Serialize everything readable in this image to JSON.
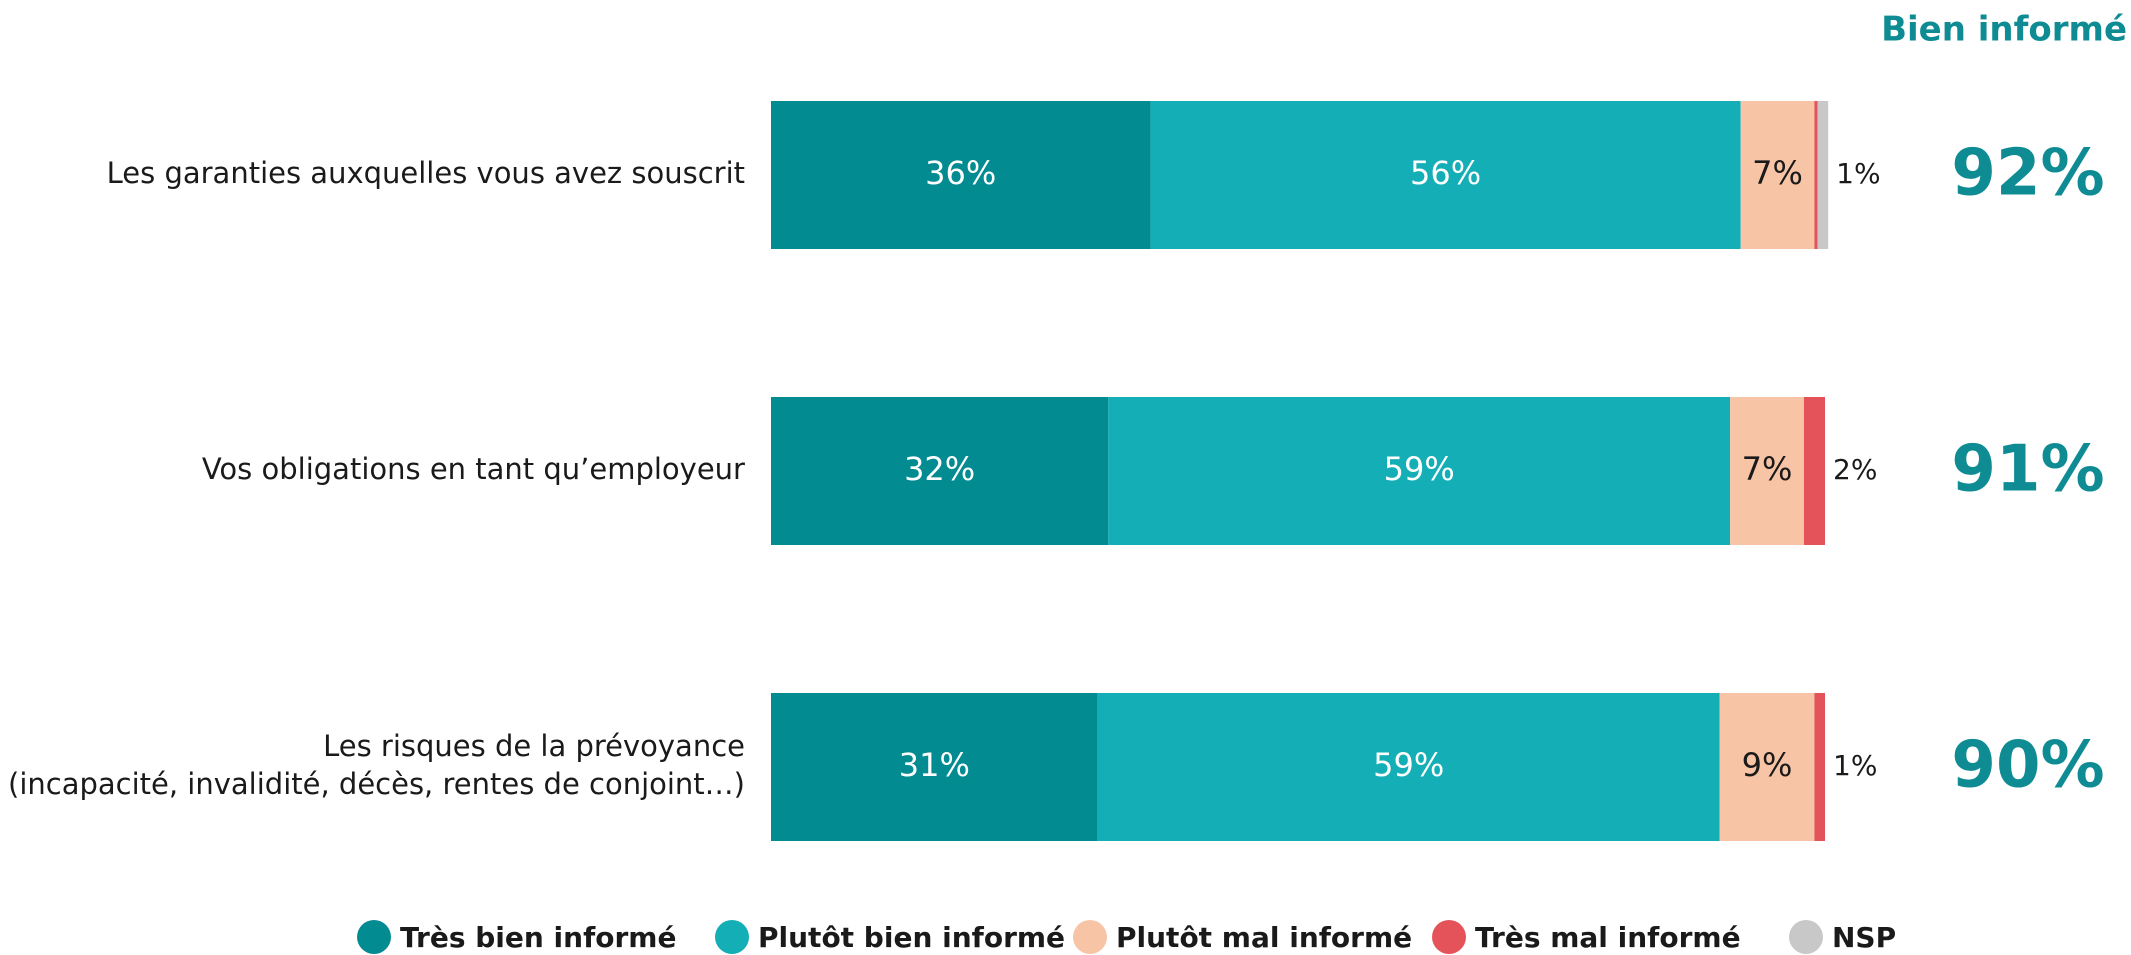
{
  "chart_data": {
    "type": "stacked-barh",
    "categories": [
      [
        "Les garanties auxquelles vous avez souscrit"
      ],
      [
        "Vos obligations en tant qu’employeur"
      ],
      [
        "Les risques de la prévoyance",
        "(incapacité, invalidité, décès, rentes de conjoint…)"
      ]
    ],
    "xlim": [
      0,
      100
    ],
    "series": [
      {
        "name": "Très bien informé",
        "color": "#038b92",
        "label_color": "#ffffff",
        "values": [
          36,
          32,
          31
        ],
        "value_labels": [
          "36%",
          "32%",
          "31%"
        ]
      },
      {
        "name": "Plutôt bien informé",
        "color": "#14aeb6",
        "label_color": "#ffffff",
        "values": [
          56,
          59,
          59
        ],
        "value_labels": [
          "56%",
          "59%",
          "59%"
        ]
      },
      {
        "name": "Plutôt mal informé",
        "color": "#f7c4a5",
        "label_color": "#1a1a1a",
        "values": [
          7,
          7,
          9
        ],
        "value_labels": [
          "7%",
          "7%",
          "9%"
        ]
      },
      {
        "name": "Très mal informé",
        "color": "#e5535a",
        "label_color": "#1a1a1a",
        "values": [
          0.3,
          2,
          1
        ],
        "value_labels": [
          null,
          "2%",
          "1%"
        ]
      },
      {
        "name": "NSP",
        "color": "#c8c8c8",
        "label_color": "#1a1a1a",
        "values": [
          1,
          0,
          0
        ],
        "value_labels": [
          "1%",
          null,
          null
        ]
      }
    ],
    "totals": {
      "title": "Bien informé",
      "color": "#0f8c93",
      "values": [
        92,
        91,
        90
      ],
      "value_labels": [
        "92%",
        "91%",
        "90%"
      ]
    },
    "legend": "bottom"
  }
}
